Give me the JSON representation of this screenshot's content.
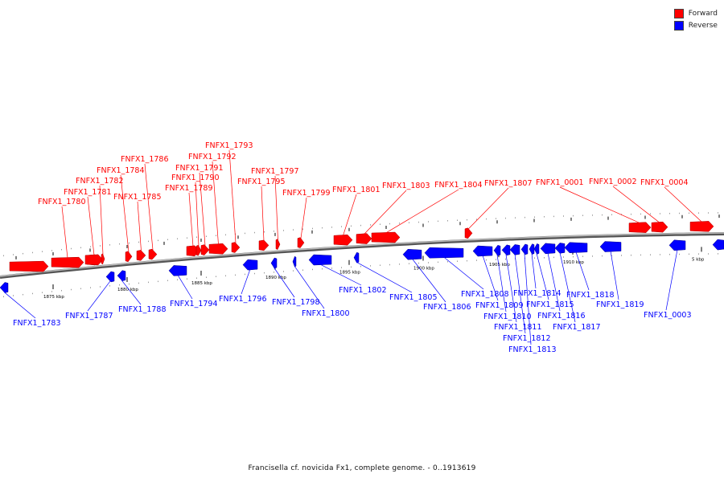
{
  "legend": {
    "forward": "Forward",
    "reverse": "Reverse"
  },
  "colors": {
    "forward": "#ff0000",
    "reverse": "#0000ff",
    "backbone": "#888888"
  },
  "caption": "Francisella cf. novicida Fx1, complete genome. - 0..1913619",
  "ticks": [
    "1875 kbp",
    "1880 kbp",
    "1885 kbp",
    "1890 kbp",
    "1895 kbp",
    "1900 kbp",
    "1905 kbp",
    "1910 kbp",
    "5 kbp"
  ],
  "forward_genes": [
    "FNFX1_1780",
    "FNFX1_1781",
    "FNFX1_1782",
    "FNFX1_1784",
    "FNFX1_1785",
    "FNFX1_1786",
    "FNFX1_1789",
    "FNFX1_1790",
    "FNFX1_1791",
    "FNFX1_1792",
    "FNFX1_1793",
    "FNFX1_1795",
    "FNFX1_1797",
    "FNFX1_1799",
    "FNFX1_1801",
    "FNFX1_1803",
    "FNFX1_1804",
    "FNFX1_1807",
    "FNFX1_0001",
    "FNFX1_0002",
    "FNFX1_0004"
  ],
  "reverse_genes": [
    "FNFX1_1783",
    "FNFX1_1787",
    "FNFX1_1788",
    "FNFX1_1794",
    "FNFX1_1796",
    "FNFX1_1798",
    "FNFX1_1800",
    "FNFX1_1802",
    "FNFX1_1805",
    "FNFX1_1806",
    "FNFX1_1808",
    "FNFX1_1809",
    "FNFX1_1810",
    "FNFX1_1811",
    "FNFX1_1812",
    "FNFX1_1813",
    "FNFX1_1814",
    "FNFX1_1815",
    "FNFX1_1816",
    "FNFX1_1817",
    "FNFX1_1818",
    "FNFX1_1819",
    "FNFX1_0003"
  ]
}
